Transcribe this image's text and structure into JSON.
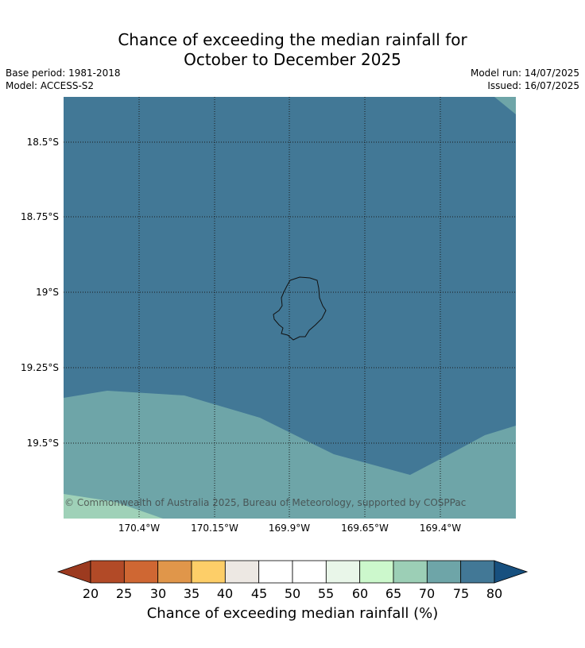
{
  "title_line1": "Chance of exceeding the median rainfall for",
  "title_line2": "October to December 2025",
  "base_period": "Base period: 1981-2018",
  "model": "Model: ACCESS-S2",
  "model_run": "Model run: 14/07/2025",
  "issued": "Issued: 16/07/2025",
  "lat_labels": [
    "18.5°S",
    "18.75°S",
    "19°S",
    "19.25°S",
    "19.5°S"
  ],
  "lon_labels": [
    "170.4°W",
    "170.15°W",
    "169.9°W",
    "169.65°W",
    "169.4°W"
  ],
  "copyright": "© Commonwealth of Australia 2025, Bureau of Meteorology, supported by COSPPac",
  "colorbar": {
    "title": "Chance of exceeding median rainfall (%)",
    "ticks": [
      "20",
      "25",
      "30",
      "35",
      "40",
      "45",
      "50",
      "55",
      "60",
      "65",
      "70",
      "75",
      "80"
    ],
    "under_color": "#9c3a1f",
    "over_color": "#17507f",
    "colors": [
      "#b24a27",
      "#cf6733",
      "#e0964a",
      "#fdce68",
      "#ede8e3",
      "#ffffff",
      "#ffffff",
      "#e9f6e9",
      "#ccf8cc",
      "#9ccfb6",
      "#6ea5a8",
      "#427896"
    ]
  },
  "map": {
    "dominant_class": "75-80",
    "colors": {
      "c75_80": "#427896",
      "c70_75": "#6ea5a8",
      "c65_70": "#9fd1b8"
    },
    "gridlines": "dotted"
  }
}
